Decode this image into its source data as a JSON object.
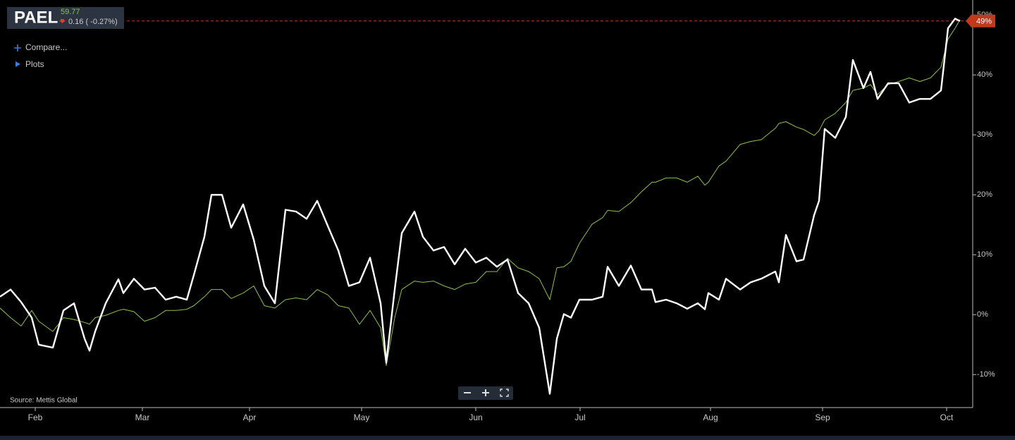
{
  "header": {
    "ticker": "PAEL",
    "price": "59.77",
    "change": "0.16 ( -0.27%)",
    "links": [
      "Compare...",
      "Plots"
    ]
  },
  "source": "Source: Mettis Global",
  "chart_data": {
    "type": "line",
    "x": [
      0,
      1.5,
      3,
      4.5,
      5.5,
      7.5,
      9,
      10.5,
      12,
      12.7,
      13.5,
      15,
      16.8,
      17.5,
      19,
      20.5,
      22,
      23.5,
      25,
      26.5,
      27.5,
      29,
      30,
      31.5,
      32.8,
      34.5,
      36,
      37.5,
      39,
      40.5,
      42,
      43.5,
      45,
      46.5,
      48,
      49.5,
      51,
      52.5,
      54,
      54.8,
      56,
      57,
      58.8,
      60,
      61.5,
      63,
      64.5,
      66,
      67.5,
      69,
      70.5,
      72,
      73.5,
      75,
      76.5,
      78,
      79,
      80,
      81,
      82.2,
      84,
      85.5,
      86.2,
      87.8,
      89.5,
      91,
      92.5,
      93,
      94.5,
      96,
      97.5,
      99,
      100,
      100.5,
      102,
      103,
      105,
      106.5,
      108,
      110,
      110.5,
      111.5,
      113,
      114,
      115.5,
      116.2,
      117,
      118.5,
      120,
      121,
      122.5,
      123.5,
      124.5,
      126,
      127.5,
      129,
      130.5,
      132,
      133.5,
      134.5,
      135.5,
      136.2
    ],
    "series": [
      {
        "color": "#ffffff",
        "values": [
          3,
          4.2,
          2.1,
          -0.5,
          -5,
          -5.5,
          0.7,
          1.9,
          -4,
          -6,
          -2.8,
          1.9,
          5.9,
          3.6,
          6,
          4.2,
          4.5,
          2.5,
          3,
          2.5,
          6.6,
          13,
          20,
          20,
          14.5,
          18.4,
          12.5,
          4.8,
          1.9,
          17.5,
          17.2,
          16,
          19,
          14.8,
          10.7,
          4.8,
          5.4,
          9.5,
          1.9,
          -8,
          4.2,
          13.6,
          17.2,
          13,
          10.7,
          11.3,
          8.4,
          11,
          8.7,
          9.5,
          8,
          9.2,
          3.6,
          1.9,
          -2.2,
          -13.2,
          -4,
          0.1,
          -0.5,
          2.5,
          2.5,
          3,
          8,
          4.8,
          8.2,
          4.2,
          4.2,
          2.1,
          2.5,
          1.9,
          1,
          1.9,
          0.9,
          3.6,
          2.5,
          6,
          4.2,
          5.4,
          6,
          7.2,
          5.4,
          13.3,
          8.9,
          9.2,
          16.6,
          19,
          31,
          29.5,
          33,
          42.5,
          37.8,
          40.5,
          36,
          38.6,
          38.6,
          35.4,
          36,
          36,
          37.4,
          47.8,
          49.4,
          49
        ]
      },
      {
        "color": "#8bc34a",
        "values": [
          1.1,
          -0.5,
          -1.9,
          0.7,
          -1.1,
          -2.8,
          -0.5,
          -0.8,
          -1.3,
          -1.6,
          -0.5,
          -0.1,
          0.7,
          0.9,
          0.5,
          -1.1,
          -0.5,
          0.7,
          0.7,
          0.9,
          1.5,
          3,
          4.2,
          4.2,
          2.7,
          3.6,
          4.8,
          1.5,
          1.1,
          2.5,
          2.8,
          2.5,
          4.2,
          3.3,
          1.5,
          1.1,
          -1.6,
          0.7,
          -2.2,
          -8.5,
          -0.5,
          4.2,
          5.6,
          5.4,
          5.6,
          4.8,
          4.2,
          5.1,
          5.4,
          7.2,
          7.2,
          9.4,
          7.8,
          7.2,
          6,
          2.5,
          7.8,
          8,
          8.9,
          11.9,
          15.1,
          16.2,
          17.4,
          17.2,
          18.7,
          20.5,
          22.1,
          22.1,
          22.8,
          22.8,
          22.1,
          23.1,
          21.6,
          22.1,
          24.8,
          25.6,
          28.4,
          28.9,
          29.2,
          31.1,
          31.9,
          32.2,
          31.3,
          30.9,
          29.9,
          30.7,
          32.5,
          33.6,
          35.4,
          37.4,
          37.8,
          38.4,
          36.7,
          38.4,
          38.9,
          39.5,
          38.9,
          39.5,
          41.3,
          46,
          47.8,
          49.2
        ]
      }
    ],
    "xlim": [
      0,
      138
    ],
    "xticks": [
      {
        "value": 5,
        "label": "Feb"
      },
      {
        "value": 20.2,
        "label": "Mar"
      },
      {
        "value": 35.4,
        "label": "Apr"
      },
      {
        "value": 51.3,
        "label": "May"
      },
      {
        "value": 67.5,
        "label": "Jun"
      },
      {
        "value": 82.3,
        "label": "Jul"
      },
      {
        "value": 100.8,
        "label": "Aug"
      },
      {
        "value": 116.7,
        "label": "Sep"
      },
      {
        "value": 134.3,
        "label": "Oct"
      }
    ],
    "ylim": [
      -15.5,
      52.5
    ],
    "yticks": [
      {
        "value": -10,
        "label": "-10%"
      },
      {
        "value": 0,
        "label": "0%"
      },
      {
        "value": 10,
        "label": "10%"
      },
      {
        "value": 20,
        "label": "20%"
      },
      {
        "value": 30,
        "label": "30%"
      },
      {
        "value": 40,
        "label": "40%"
      },
      {
        "value": 50,
        "label": "50%"
      }
    ],
    "last": {
      "value": 49,
      "label": "49%",
      "color": "#c0391b"
    }
  }
}
